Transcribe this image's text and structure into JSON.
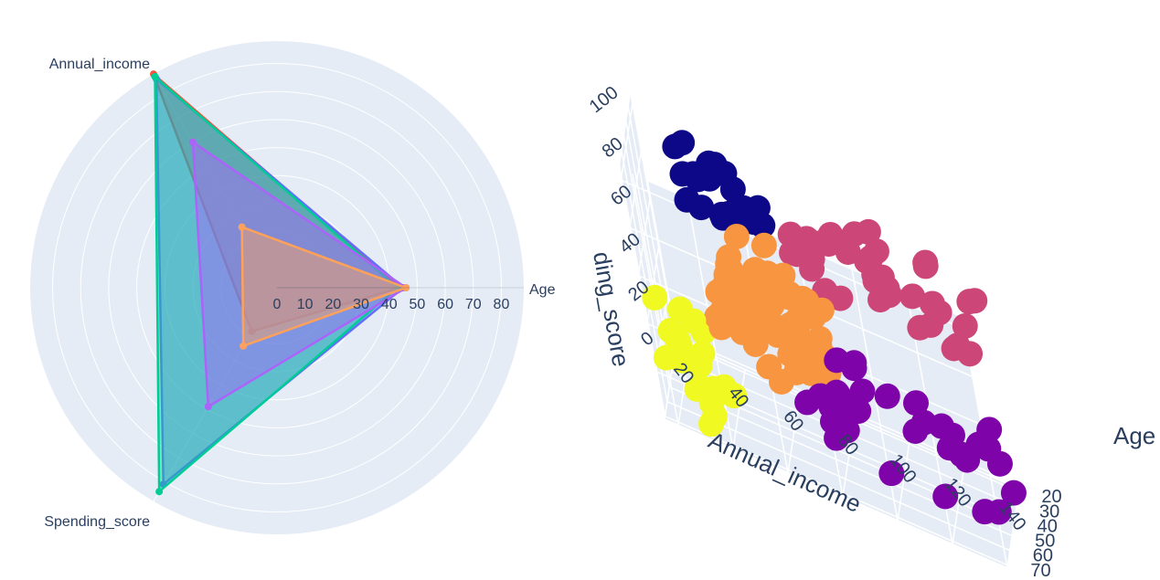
{
  "chart_data": [
    {
      "type": "radar",
      "axes": [
        "Age",
        "Annual_income",
        "Spending_score"
      ],
      "radial_ticks": [
        "0",
        "10",
        "20",
        "30",
        "40",
        "50",
        "60",
        "70",
        "80"
      ],
      "radial_range": [
        0,
        88
      ],
      "grid": true,
      "series": [
        {
          "color": "#EF553B",
          "values": [
            44,
            88,
            18
          ]
        },
        {
          "color": "#636EFA",
          "values": [
            45,
            86,
            81
          ]
        },
        {
          "color": "#00CC96",
          "values": [
            43,
            87,
            84
          ]
        },
        {
          "color": "#AB63FA",
          "values": [
            46,
            60,
            49
          ]
        },
        {
          "color": "#FFA15A",
          "values": [
            46,
            25,
            24
          ]
        }
      ]
    },
    {
      "type": "scatter3d",
      "axes": {
        "x": {
          "title": "Annual_income",
          "ticks": [
            "20",
            "40",
            "60",
            "80",
            "100",
            "120",
            "140"
          ]
        },
        "y": {
          "title": "Age",
          "ticks": [
            "20",
            "30",
            "40",
            "50",
            "60",
            "70"
          ]
        },
        "z": {
          "title": "Spending_score",
          "visible_title": "ding_score",
          "ticks": [
            "0",
            "20",
            "40",
            "60",
            "80",
            "100"
          ]
        }
      },
      "clusters": [
        {
          "color": "#0d0887",
          "age": [
            25,
            35
          ],
          "income": [
            30,
            60
          ],
          "score": [
            70,
            100
          ]
        },
        {
          "color": "#cc4778",
          "age": [
            28,
            40
          ],
          "income": [
            70,
            140
          ],
          "score": [
            60,
            95
          ]
        },
        {
          "color": "#f89540",
          "age": [
            20,
            70
          ],
          "income": [
            40,
            80
          ],
          "score": [
            35,
            65
          ]
        },
        {
          "color": "#7e03a8",
          "age": [
            30,
            60
          ],
          "income": [
            70,
            140
          ],
          "score": [
            5,
            40
          ]
        },
        {
          "color": "#f0f921",
          "age": [
            40,
            70
          ],
          "income": [
            15,
            40
          ],
          "score": [
            5,
            45
          ]
        }
      ]
    }
  ]
}
